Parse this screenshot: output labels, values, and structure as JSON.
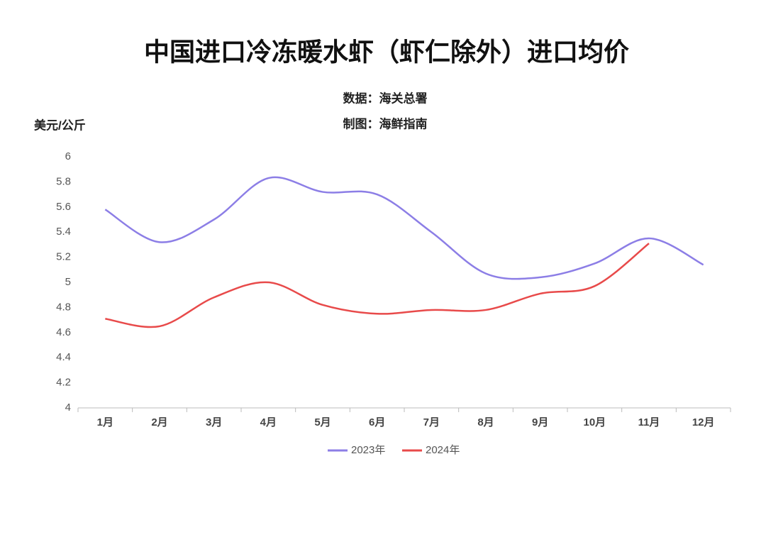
{
  "chart_data": {
    "type": "line",
    "title": "中国进口冷冻暖水虾（虾仁除外）进口均价",
    "subtitle": [
      "数据：海关总署",
      "制图：海鲜指南"
    ],
    "ylabel": "美元/公斤",
    "categories": [
      "1月",
      "2月",
      "3月",
      "4月",
      "5月",
      "6月",
      "7月",
      "8月",
      "9月",
      "10月",
      "11月",
      "12月"
    ],
    "series": [
      {
        "name": "2023年",
        "color": "#8c7ee6",
        "values": [
          5.58,
          5.32,
          5.5,
          5.83,
          5.72,
          5.7,
          5.4,
          5.07,
          5.04,
          5.15,
          5.35,
          5.14
        ]
      },
      {
        "name": "2024年",
        "color": "#e84a4a",
        "values": [
          4.71,
          4.65,
          4.88,
          5.0,
          4.82,
          4.75,
          4.78,
          4.78,
          4.91,
          4.97,
          5.31,
          null
        ]
      }
    ],
    "ylim": [
      4,
      6
    ],
    "yticks": [
      4,
      4.2,
      4.4,
      4.6,
      4.8,
      5,
      5.2,
      5.4,
      5.6,
      5.8,
      6
    ],
    "grid": false,
    "legend": "bottom"
  }
}
